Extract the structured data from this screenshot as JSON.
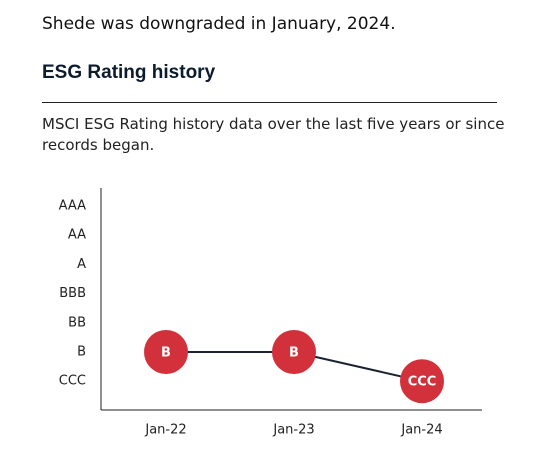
{
  "header_text": "Shede was downgraded in January, 2024.",
  "chart_data": {
    "type": "line",
    "title": "ESG Rating history",
    "subtitle": "MSCI ESG Rating history data over the last five years or since records began.",
    "categories": [
      "Jan-22",
      "Jan-23",
      "Jan-24"
    ],
    "y_categories": [
      "AAA",
      "AA",
      "A",
      "BBB",
      "BB",
      "B",
      "CCC"
    ],
    "line_color": "#1b2333",
    "series": [
      {
        "color": "#d2313b",
        "values": [
          "B",
          "B",
          "CCC"
        ]
      }
    ]
  }
}
